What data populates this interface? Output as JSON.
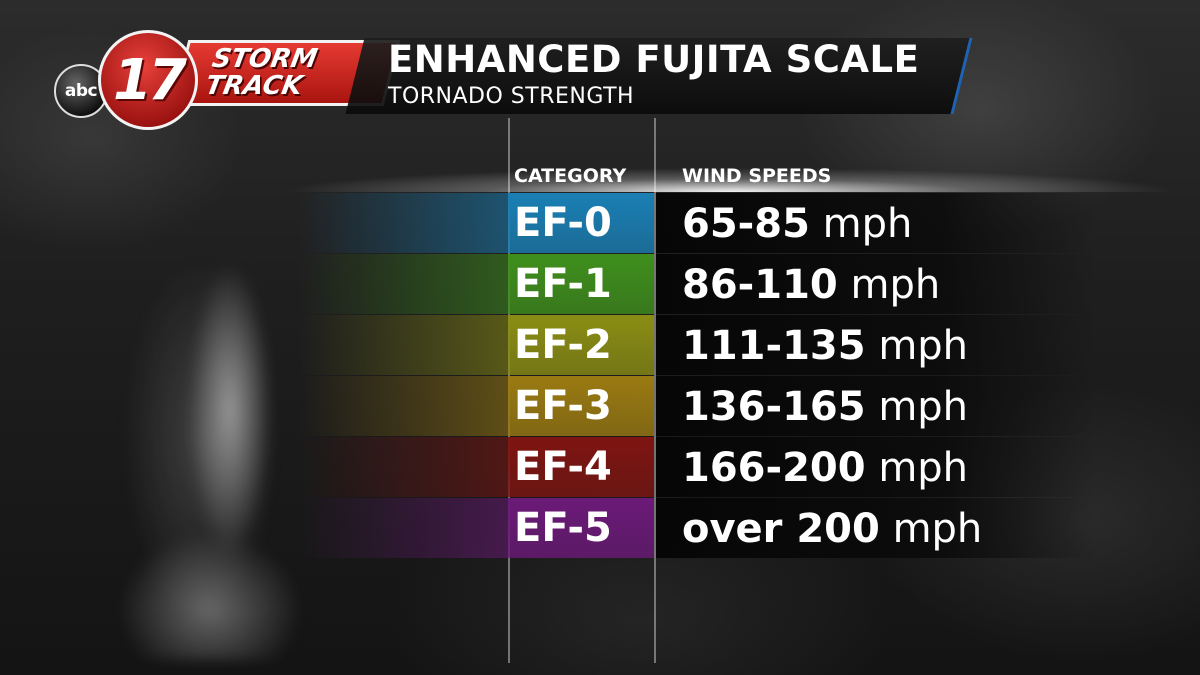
{
  "branding": {
    "network": "abc",
    "channel": "17",
    "show_line1": "STORM",
    "show_line2": "TRACK",
    "brand_red": "#c81e18",
    "accent_blue": "#1e63b3"
  },
  "title": "ENHANCED FUJITA SCALE",
  "subtitle": "TORNADO STRENGTH",
  "columns": {
    "category": "CATEGORY",
    "wind_speeds": "WIND SPEEDS"
  },
  "rows": [
    {
      "category": "EF-0",
      "range": "65-85",
      "unit": "mph",
      "color": "#1a7fb4"
    },
    {
      "category": "EF-1",
      "range": "86-110",
      "unit": "mph",
      "color": "#3f8f1d"
    },
    {
      "category": "EF-2",
      "range": "111-135",
      "unit": "mph",
      "color": "#8a8d14"
    },
    {
      "category": "EF-3",
      "range": "136-165",
      "unit": "mph",
      "color": "#9a7a12"
    },
    {
      "category": "EF-4",
      "range": "166-200",
      "unit": "mph",
      "color": "#7e1512"
    },
    {
      "category": "EF-5",
      "range": "over 200",
      "unit": "mph",
      "color": "#6b1a78"
    }
  ]
}
